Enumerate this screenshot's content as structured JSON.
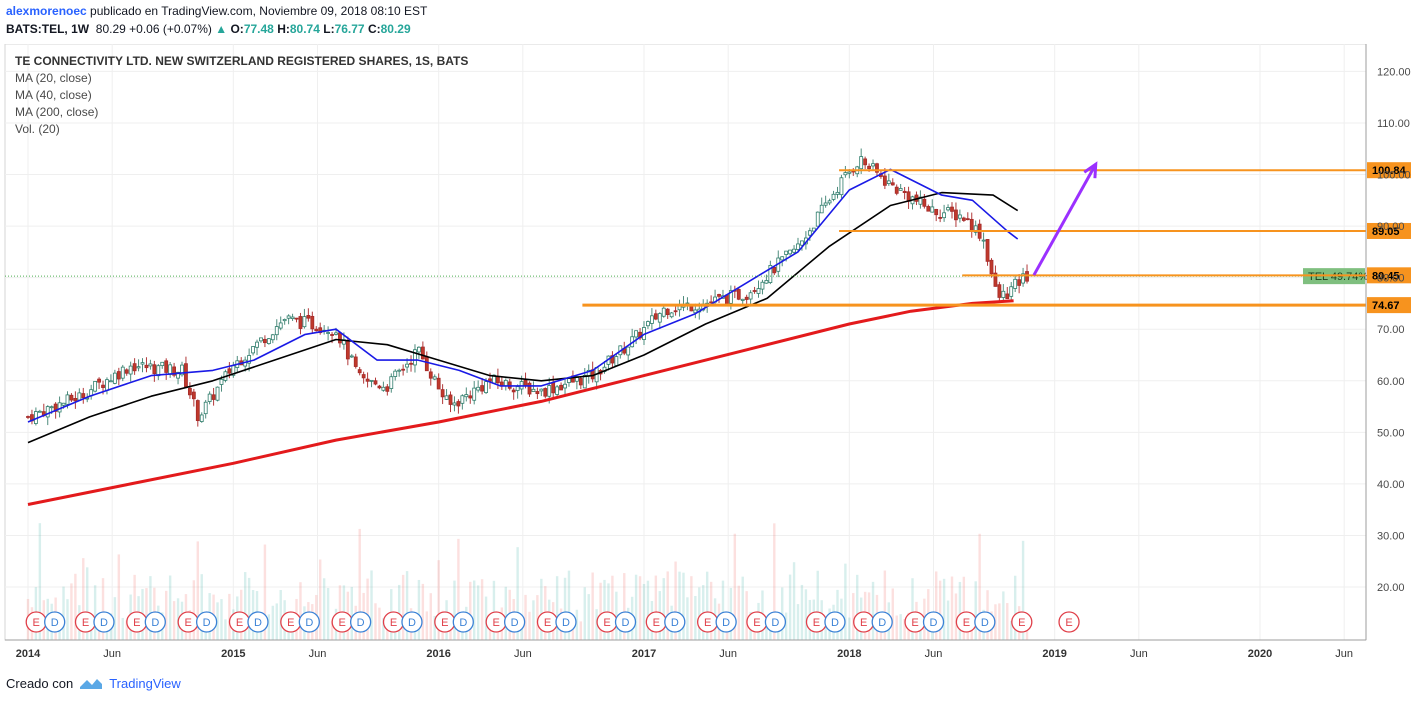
{
  "header": {
    "author": "alexmorenoec",
    "published": " publicado en TradingView.com, Noviembre 09, 2018 08:10 EST",
    "symbol": "BATS:TEL, 1W",
    "last": "80.29",
    "change": "+0.06 (+0.07%)",
    "ohlc": {
      "o_label": "O:",
      "o": "77.48",
      "h_label": "H:",
      "h": "80.74",
      "l_label": "L:",
      "l": "76.77",
      "c_label": "C:",
      "c": "80.29"
    }
  },
  "legend": {
    "title": "TE CONNECTIVITY LTD. NEW SWITZERLAND REGISTERED SHARES, 1S, BATS",
    "ma20": "MA (20, close)",
    "ma40": "MA (40, close)",
    "ma200": "MA (200, close)",
    "vol": "Vol. (20)"
  },
  "footer": {
    "created_with": "Creado con",
    "brand": "TradingView",
    "icon": "tradingview-logo-icon"
  },
  "chart_data": {
    "type": "candlestick",
    "timeframe": "1W",
    "ylim": [
      10,
      123
    ],
    "y_ticks": [
      "120.00",
      "110.00",
      "100.00",
      "90.00",
      "80.00",
      "70.00",
      "60.00",
      "50.00",
      "40.00",
      "30.00",
      "20.00"
    ],
    "x_ticks": [
      "2014",
      "Jun",
      "2015",
      "Jun",
      "2016",
      "Jun",
      "2017",
      "Jun",
      "2018",
      "Jun",
      "2019",
      "Jun",
      "2020",
      "Jun"
    ],
    "close_path": [
      [
        2014.0,
        53
      ],
      [
        2014.25,
        57
      ],
      [
        2014.5,
        63
      ],
      [
        2014.75,
        62
      ],
      [
        2014.83,
        53
      ],
      [
        2015.0,
        63
      ],
      [
        2015.25,
        72
      ],
      [
        2015.5,
        70
      ],
      [
        2015.62,
        60
      ],
      [
        2015.75,
        59
      ],
      [
        2015.9,
        66
      ],
      [
        2016.05,
        55
      ],
      [
        2016.25,
        60
      ],
      [
        2016.5,
        58
      ],
      [
        2016.75,
        61
      ],
      [
        2016.95,
        68
      ],
      [
        2017.1,
        74
      ],
      [
        2017.3,
        75
      ],
      [
        2017.5,
        77
      ],
      [
        2017.75,
        86
      ],
      [
        2017.95,
        98
      ],
      [
        2018.05,
        103
      ],
      [
        2018.2,
        98
      ],
      [
        2018.4,
        93
      ],
      [
        2018.55,
        92
      ],
      [
        2018.65,
        88
      ],
      [
        2018.72,
        76
      ],
      [
        2018.77,
        77
      ],
      [
        2018.86,
        80.29
      ]
    ],
    "ma20_path": [
      [
        2014.0,
        52
      ],
      [
        2014.3,
        57
      ],
      [
        2014.6,
        61
      ],
      [
        2014.9,
        62
      ],
      [
        2015.1,
        64
      ],
      [
        2015.35,
        69
      ],
      [
        2015.5,
        70
      ],
      [
        2015.7,
        64
      ],
      [
        2015.9,
        64
      ],
      [
        2016.1,
        62
      ],
      [
        2016.3,
        59
      ],
      [
        2016.5,
        59
      ],
      [
        2016.75,
        62
      ],
      [
        2017.0,
        69
      ],
      [
        2017.25,
        73
      ],
      [
        2017.5,
        79
      ],
      [
        2017.75,
        85
      ],
      [
        2018.0,
        97
      ],
      [
        2018.2,
        101
      ],
      [
        2018.45,
        96
      ],
      [
        2018.6,
        95
      ],
      [
        2018.77,
        89
      ],
      [
        2018.82,
        87.5
      ]
    ],
    "ma40_path": [
      [
        2014.0,
        48
      ],
      [
        2014.3,
        53
      ],
      [
        2014.6,
        57
      ],
      [
        2014.9,
        60
      ],
      [
        2015.2,
        64
      ],
      [
        2015.5,
        68
      ],
      [
        2015.75,
        67
      ],
      [
        2016.0,
        64
      ],
      [
        2016.25,
        61
      ],
      [
        2016.5,
        60
      ],
      [
        2016.75,
        61
      ],
      [
        2017.0,
        65
      ],
      [
        2017.3,
        71
      ],
      [
        2017.6,
        76
      ],
      [
        2017.9,
        86
      ],
      [
        2018.2,
        94
      ],
      [
        2018.45,
        96.5
      ],
      [
        2018.7,
        96
      ],
      [
        2018.82,
        93
      ]
    ],
    "ma200_path": [
      [
        2014.0,
        36
      ],
      [
        2014.5,
        40
      ],
      [
        2015.0,
        44
      ],
      [
        2015.5,
        48.5
      ],
      [
        2016.0,
        52
      ],
      [
        2016.5,
        56
      ],
      [
        2017.0,
        61
      ],
      [
        2017.5,
        66
      ],
      [
        2018.0,
        71
      ],
      [
        2018.3,
        73.5
      ],
      [
        2018.6,
        75
      ],
      [
        2018.8,
        75.5
      ]
    ],
    "horizontal_levels": [
      {
        "value": 100.84,
        "label": "100.84",
        "from": 2017.95
      },
      {
        "value": 89.05,
        "label": "89.05",
        "from": 2017.95
      },
      {
        "value": 80.45,
        "label": "80.45",
        "from": 2018.55
      },
      {
        "value": 74.67,
        "label": "74.67",
        "from": 2016.7
      }
    ],
    "last_price_tag": "TEL 49.74%",
    "projection_arrow": {
      "from": [
        2018.86,
        80.5
      ],
      "to": [
        2019.2,
        102
      ]
    },
    "earnings_markers": [
      {
        "type": "E",
        "x": 2014.04
      },
      {
        "type": "D",
        "x": 2014.13
      },
      {
        "type": "E",
        "x": 2014.28
      },
      {
        "type": "D",
        "x": 2014.37
      },
      {
        "type": "E",
        "x": 2014.53
      },
      {
        "type": "D",
        "x": 2014.62
      },
      {
        "type": "E",
        "x": 2014.78
      },
      {
        "type": "D",
        "x": 2014.87
      },
      {
        "type": "E",
        "x": 2015.03
      },
      {
        "type": "D",
        "x": 2015.12
      },
      {
        "type": "E",
        "x": 2015.28
      },
      {
        "type": "D",
        "x": 2015.37
      },
      {
        "type": "E",
        "x": 2015.53
      },
      {
        "type": "D",
        "x": 2015.62
      },
      {
        "type": "E",
        "x": 2015.78
      },
      {
        "type": "D",
        "x": 2015.87
      },
      {
        "type": "E",
        "x": 2016.03
      },
      {
        "type": "D",
        "x": 2016.12
      },
      {
        "type": "E",
        "x": 2016.28
      },
      {
        "type": "D",
        "x": 2016.37
      },
      {
        "type": "E",
        "x": 2016.53
      },
      {
        "type": "D",
        "x": 2016.62
      },
      {
        "type": "E",
        "x": 2016.82
      },
      {
        "type": "D",
        "x": 2016.91
      },
      {
        "type": "E",
        "x": 2017.06
      },
      {
        "type": "D",
        "x": 2017.15
      },
      {
        "type": "E",
        "x": 2017.31
      },
      {
        "type": "D",
        "x": 2017.4
      },
      {
        "type": "E",
        "x": 2017.55
      },
      {
        "type": "D",
        "x": 2017.64
      },
      {
        "type": "E",
        "x": 2017.84
      },
      {
        "type": "D",
        "x": 2017.93
      },
      {
        "type": "E",
        "x": 2018.07
      },
      {
        "type": "D",
        "x": 2018.16
      },
      {
        "type": "E",
        "x": 2018.32
      },
      {
        "type": "D",
        "x": 2018.41
      },
      {
        "type": "E",
        "x": 2018.57
      },
      {
        "type": "D",
        "x": 2018.66
      },
      {
        "type": "E",
        "x": 2018.84
      },
      {
        "type": "E",
        "x": 2019.07
      }
    ],
    "colors": {
      "up": "#26a69a",
      "down": "#ef5350",
      "ma20": "#1a1ae6",
      "ma40": "#000000",
      "ma200": "#e31a1c",
      "level": "#f7931e",
      "arrow": "#9b30ff",
      "price_tag": "#7fbf7f"
    }
  }
}
